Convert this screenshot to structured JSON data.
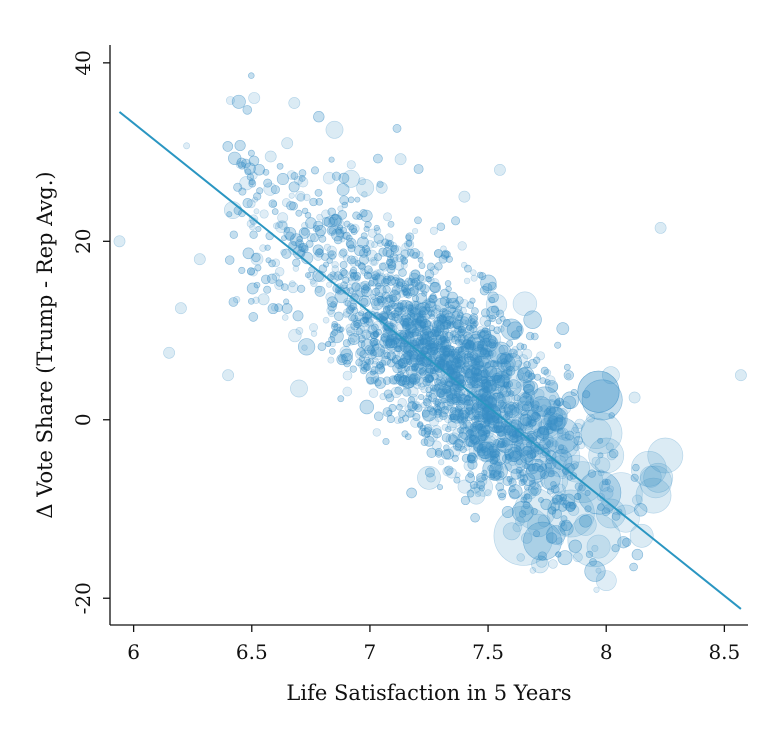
{
  "chart_data": {
    "type": "scatter",
    "title": "",
    "xlabel": "Life Satisfaction in 5 Years",
    "ylabel": "Δ Vote Share (Trump - Rep Avg.)",
    "xlim": [
      5.9,
      8.6
    ],
    "ylim": [
      -23,
      42
    ],
    "xticks": [
      6,
      6.5,
      7,
      7.5,
      8,
      8.5
    ],
    "xtick_labels": [
      "6",
      "6.5",
      "7",
      "7.5",
      "8",
      "8.5"
    ],
    "yticks": [
      -20,
      0,
      20,
      40
    ],
    "ytick_labels": [
      "-20",
      "0",
      "20",
      "40"
    ],
    "grid": false,
    "legend": "none",
    "point_color": "#3a8fc4",
    "line_color": "#2a96c2",
    "fit_line": {
      "x": [
        5.94,
        8.57
      ],
      "y": [
        34.5,
        -21.2
      ]
    },
    "cloud": {
      "count": 3600,
      "x_center": 7.35,
      "y_intercept_at_6": 34.0,
      "slope": -21.2,
      "note": "dense point cloud along fitted line; larger circles cluster near x 7.5–8.2"
    },
    "points": [
      {
        "x": 5.94,
        "y": 20,
        "s": 1
      },
      {
        "x": 6.15,
        "y": 7.5,
        "s": 1
      },
      {
        "x": 6.2,
        "y": 12.5,
        "s": 1
      },
      {
        "x": 6.28,
        "y": 18,
        "s": 1
      },
      {
        "x": 6.4,
        "y": 5,
        "s": 1
      },
      {
        "x": 6.42,
        "y": 23.5,
        "s": 2
      },
      {
        "x": 6.55,
        "y": 13.5,
        "s": 1
      },
      {
        "x": 6.58,
        "y": 29.5,
        "s": 1
      },
      {
        "x": 6.65,
        "y": 31,
        "s": 1
      },
      {
        "x": 6.68,
        "y": 35.5,
        "s": 1
      },
      {
        "x": 6.7,
        "y": 3.5,
        "s": 2
      },
      {
        "x": 6.85,
        "y": 32.5,
        "s": 2
      },
      {
        "x": 6.92,
        "y": 27,
        "s": 2
      },
      {
        "x": 6.98,
        "y": 26,
        "s": 2
      },
      {
        "x": 7.05,
        "y": 26,
        "s": 1
      },
      {
        "x": 7.13,
        "y": 29.2,
        "s": 1
      },
      {
        "x": 7.25,
        "y": -6.5,
        "s": 3
      },
      {
        "x": 7.4,
        "y": 25,
        "s": 1
      },
      {
        "x": 7.45,
        "y": -8.5,
        "s": 2
      },
      {
        "x": 7.55,
        "y": 28,
        "s": 1
      },
      {
        "x": 7.6,
        "y": -12.5,
        "s": 2
      },
      {
        "x": 7.65,
        "y": -13,
        "s": 9
      },
      {
        "x": 7.7,
        "y": -10,
        "s": 6
      },
      {
        "x": 7.72,
        "y": -16.2,
        "s": 2
      },
      {
        "x": 7.85,
        "y": -10.5,
        "s": 7
      },
      {
        "x": 7.9,
        "y": -7,
        "s": 6
      },
      {
        "x": 7.95,
        "y": -13.5,
        "s": 8
      },
      {
        "x": 7.98,
        "y": -1.5,
        "s": 6
      },
      {
        "x": 8.0,
        "y": -4,
        "s": 5
      },
      {
        "x": 8.02,
        "y": -10.5,
        "s": 4
      },
      {
        "x": 8.02,
        "y": 5,
        "s": 2
      },
      {
        "x": 8.12,
        "y": 2.5,
        "s": 1
      },
      {
        "x": 8.15,
        "y": -13,
        "s": 3
      },
      {
        "x": 8.18,
        "y": -5.5,
        "s": 5
      },
      {
        "x": 8.2,
        "y": -8.5,
        "s": 5
      },
      {
        "x": 8.22,
        "y": -6.5,
        "s": 4
      },
      {
        "x": 8.23,
        "y": 21.5,
        "s": 1
      },
      {
        "x": 8.25,
        "y": -4,
        "s": 5
      },
      {
        "x": 8.57,
        "y": 5,
        "s": 1
      }
    ]
  }
}
